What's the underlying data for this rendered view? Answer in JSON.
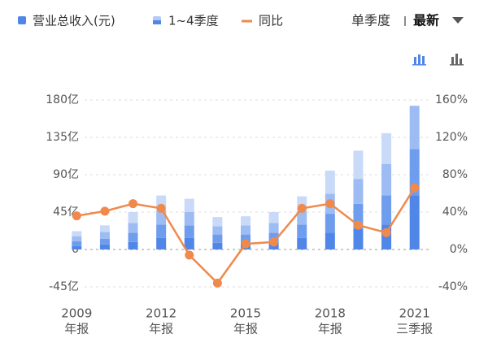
{
  "chart_data": {
    "type": "stacked-bar-line",
    "legend": [
      {
        "label": "营业总收入(元)",
        "color": "#4f86e8"
      },
      {
        "label": "1~4季度",
        "color": "#b3cbf6"
      },
      {
        "label": "同比",
        "color": "#ef8a4c"
      }
    ],
    "controls": {
      "period": "单季度",
      "sort": "最新"
    },
    "categories": [
      "2009",
      null,
      null,
      "2012",
      null,
      null,
      "2015",
      null,
      null,
      "2018",
      null,
      null,
      "2021"
    ],
    "category_sublabels": [
      "年报",
      null,
      null,
      "年报",
      null,
      null,
      "年报",
      null,
      null,
      "年报",
      null,
      null,
      "三季报"
    ],
    "segment_colors": [
      "#4f86e8",
      "#6f9ded",
      "#9dbcf4",
      "#c9daf9"
    ],
    "segments": [
      [
        4,
        6,
        6,
        6
      ],
      [
        6,
        7,
        8,
        8
      ],
      [
        9,
        11,
        12,
        13
      ],
      [
        14,
        16,
        17,
        18
      ],
      [
        14,
        15,
        16,
        16
      ],
      [
        8,
        10,
        10,
        11
      ],
      [
        8,
        10,
        11,
        11
      ],
      [
        9,
        11,
        12,
        13
      ],
      [
        14,
        16,
        16,
        18
      ],
      [
        20,
        23,
        24,
        28
      ],
      [
        25,
        30,
        30,
        34
      ],
      [
        30,
        35,
        38,
        37
      ],
      [
        65,
        56,
        52
      ]
    ],
    "line": {
      "name": "同比",
      "color": "#ef8a4c",
      "axis": "y2",
      "values": [
        36,
        41,
        49,
        44,
        -6,
        -36,
        6,
        8,
        44,
        49,
        26,
        18,
        66
      ]
    },
    "ylim": [
      -45,
      180
    ],
    "yticks": [
      {
        "value": -45,
        "label": "-45亿"
      },
      0,
      {
        "value": 45,
        "label": "45亿"
      },
      {
        "value": 90,
        "label": "90亿"
      },
      {
        "value": 135,
        "label": "135亿"
      },
      {
        "value": 180,
        "label": "180亿"
      }
    ],
    "y2lim": [
      -40,
      160
    ],
    "y2ticks": [
      {
        "value": -40,
        "label": "-40%"
      },
      {
        "value": 0,
        "label": "0%"
      },
      {
        "value": 40,
        "label": "40%"
      },
      {
        "value": 80,
        "label": "80%"
      },
      {
        "value": 120,
        "label": "120%"
      },
      {
        "value": 160,
        "label": "160%"
      }
    ],
    "grid": true
  }
}
